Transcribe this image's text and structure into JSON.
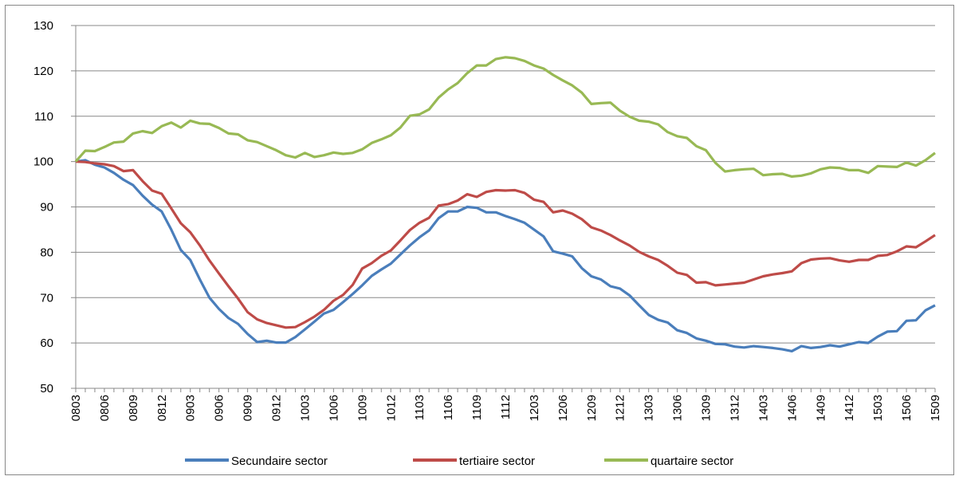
{
  "chart_data": {
    "type": "line",
    "categories": [
      "0803",
      null,
      null,
      "0806",
      null,
      null,
      "0809",
      null,
      null,
      "0812",
      null,
      null,
      "0903",
      null,
      null,
      "0906",
      null,
      null,
      "0909",
      null,
      null,
      "0912",
      null,
      null,
      "1003",
      null,
      null,
      "1006",
      null,
      null,
      "1009",
      null,
      null,
      "1012",
      null,
      null,
      "1103",
      null,
      null,
      "1106",
      null,
      null,
      "1109",
      null,
      null,
      "1112",
      null,
      null,
      "1203",
      null,
      null,
      "1206",
      null,
      null,
      "1209",
      null,
      null,
      "1212",
      null,
      null,
      "1303",
      null,
      null,
      "1306",
      null,
      null,
      "1309",
      null,
      null,
      "1312",
      null,
      null,
      "1403",
      null,
      null,
      "1406",
      null,
      null,
      "1409",
      null,
      null,
      "1412",
      null,
      null,
      "1503",
      null,
      null,
      "1506",
      null,
      null,
      "1509"
    ],
    "series": [
      {
        "name": "Secundaire sector",
        "color": "#4a7ebb",
        "values": [
          100,
          100.3,
          99.3,
          98.7,
          97.5,
          96,
          94.8,
          92.5,
          90.5,
          89,
          85,
          80.5,
          78.3,
          74,
          70,
          67.5,
          65.5,
          64.2,
          62,
          60.2,
          60.5,
          60.1,
          60.1,
          61.3,
          63,
          64.7,
          66.5,
          67.3,
          69,
          70.8,
          72.7,
          74.8,
          76.2,
          77.5,
          79.5,
          81.5,
          83.3,
          84.8,
          87.5,
          89,
          89,
          90,
          89.8,
          88.8,
          88.8,
          88,
          87.3,
          86.5,
          85,
          83.5,
          80.2,
          79.7,
          79.1,
          76.5,
          74.7,
          74,
          72.5,
          72,
          70.5,
          68.3,
          66.2,
          65.1,
          64.5,
          62.8,
          62.2,
          61,
          60.5,
          59.8,
          59.7,
          59.2,
          59,
          59.3,
          59.1,
          58.9,
          58.6,
          58.2,
          59.3,
          58.9,
          59.1,
          59.5,
          59.2,
          59.7,
          60.2,
          60,
          61.4,
          62.5,
          62.6,
          64.9,
          65,
          67.2,
          68.3
        ]
      },
      {
        "name": "tertiaire sector",
        "color": "#be4b48",
        "values": [
          100,
          99.9,
          99.6,
          99.4,
          99,
          97.9,
          98.1,
          95.7,
          93.6,
          92.9,
          89.7,
          86.4,
          84.4,
          81.5,
          78.2,
          75.3,
          72.5,
          69.8,
          66.8,
          65.2,
          64.4,
          63.9,
          63.4,
          63.5,
          64.6,
          65.8,
          67.3,
          69.3,
          70.6,
          72.8,
          76.4,
          77.6,
          79.2,
          80.4,
          82.6,
          84.9,
          86.5,
          87.6,
          90.3,
          90.6,
          91.4,
          92.8,
          92.2,
          93.3,
          93.7,
          93.6,
          93.7,
          93.1,
          91.6,
          91.1,
          88.8,
          89.2,
          88.5,
          87.3,
          85.5,
          84.8,
          83.8,
          82.6,
          81.5,
          80.1,
          79.1,
          78.3,
          77,
          75.5,
          75,
          73.3,
          73.4,
          72.7,
          72.9,
          73.1,
          73.3,
          74,
          74.7,
          75.1,
          75.4,
          75.8,
          77.6,
          78.4,
          78.6,
          78.7,
          78.2,
          77.9,
          78.3,
          78.3,
          79.2,
          79.4,
          80.2,
          81.3,
          81.1,
          82.4,
          83.8
        ]
      },
      {
        "name": "quartaire sector",
        "color": "#98b954",
        "values": [
          100,
          102.4,
          102.3,
          103.2,
          104.2,
          104.4,
          106.2,
          106.7,
          106.3,
          107.8,
          108.6,
          107.5,
          109,
          108.4,
          108.3,
          107.4,
          106.2,
          106,
          104.7,
          104.3,
          103.4,
          102.5,
          101.4,
          100.9,
          101.9,
          101,
          101.4,
          102,
          101.7,
          101.9,
          102.7,
          104.1,
          104.9,
          105.8,
          107.5,
          110.1,
          110.4,
          111.5,
          114.1,
          115.9,
          117.3,
          119.5,
          121.2,
          121.2,
          122.6,
          123,
          122.8,
          122.2,
          121.2,
          120.5,
          119.1,
          117.9,
          116.8,
          115.2,
          112.7,
          112.9,
          113,
          111.2,
          109.9,
          109,
          108.8,
          108.2,
          106.5,
          105.6,
          105.2,
          103.4,
          102.5,
          99.7,
          97.8,
          98.1,
          98.3,
          98.4,
          97,
          97.2,
          97.3,
          96.7,
          96.9,
          97.4,
          98.3,
          98.7,
          98.6,
          98.1,
          98.1,
          97.5,
          99,
          98.9,
          98.8,
          99.8,
          99.1,
          100.3,
          101.9
        ]
      }
    ],
    "ylim": [
      50,
      130
    ],
    "yticks": [
      50,
      60,
      70,
      80,
      90,
      100,
      110,
      120,
      130
    ],
    "grid": true,
    "legend": "bottom"
  }
}
